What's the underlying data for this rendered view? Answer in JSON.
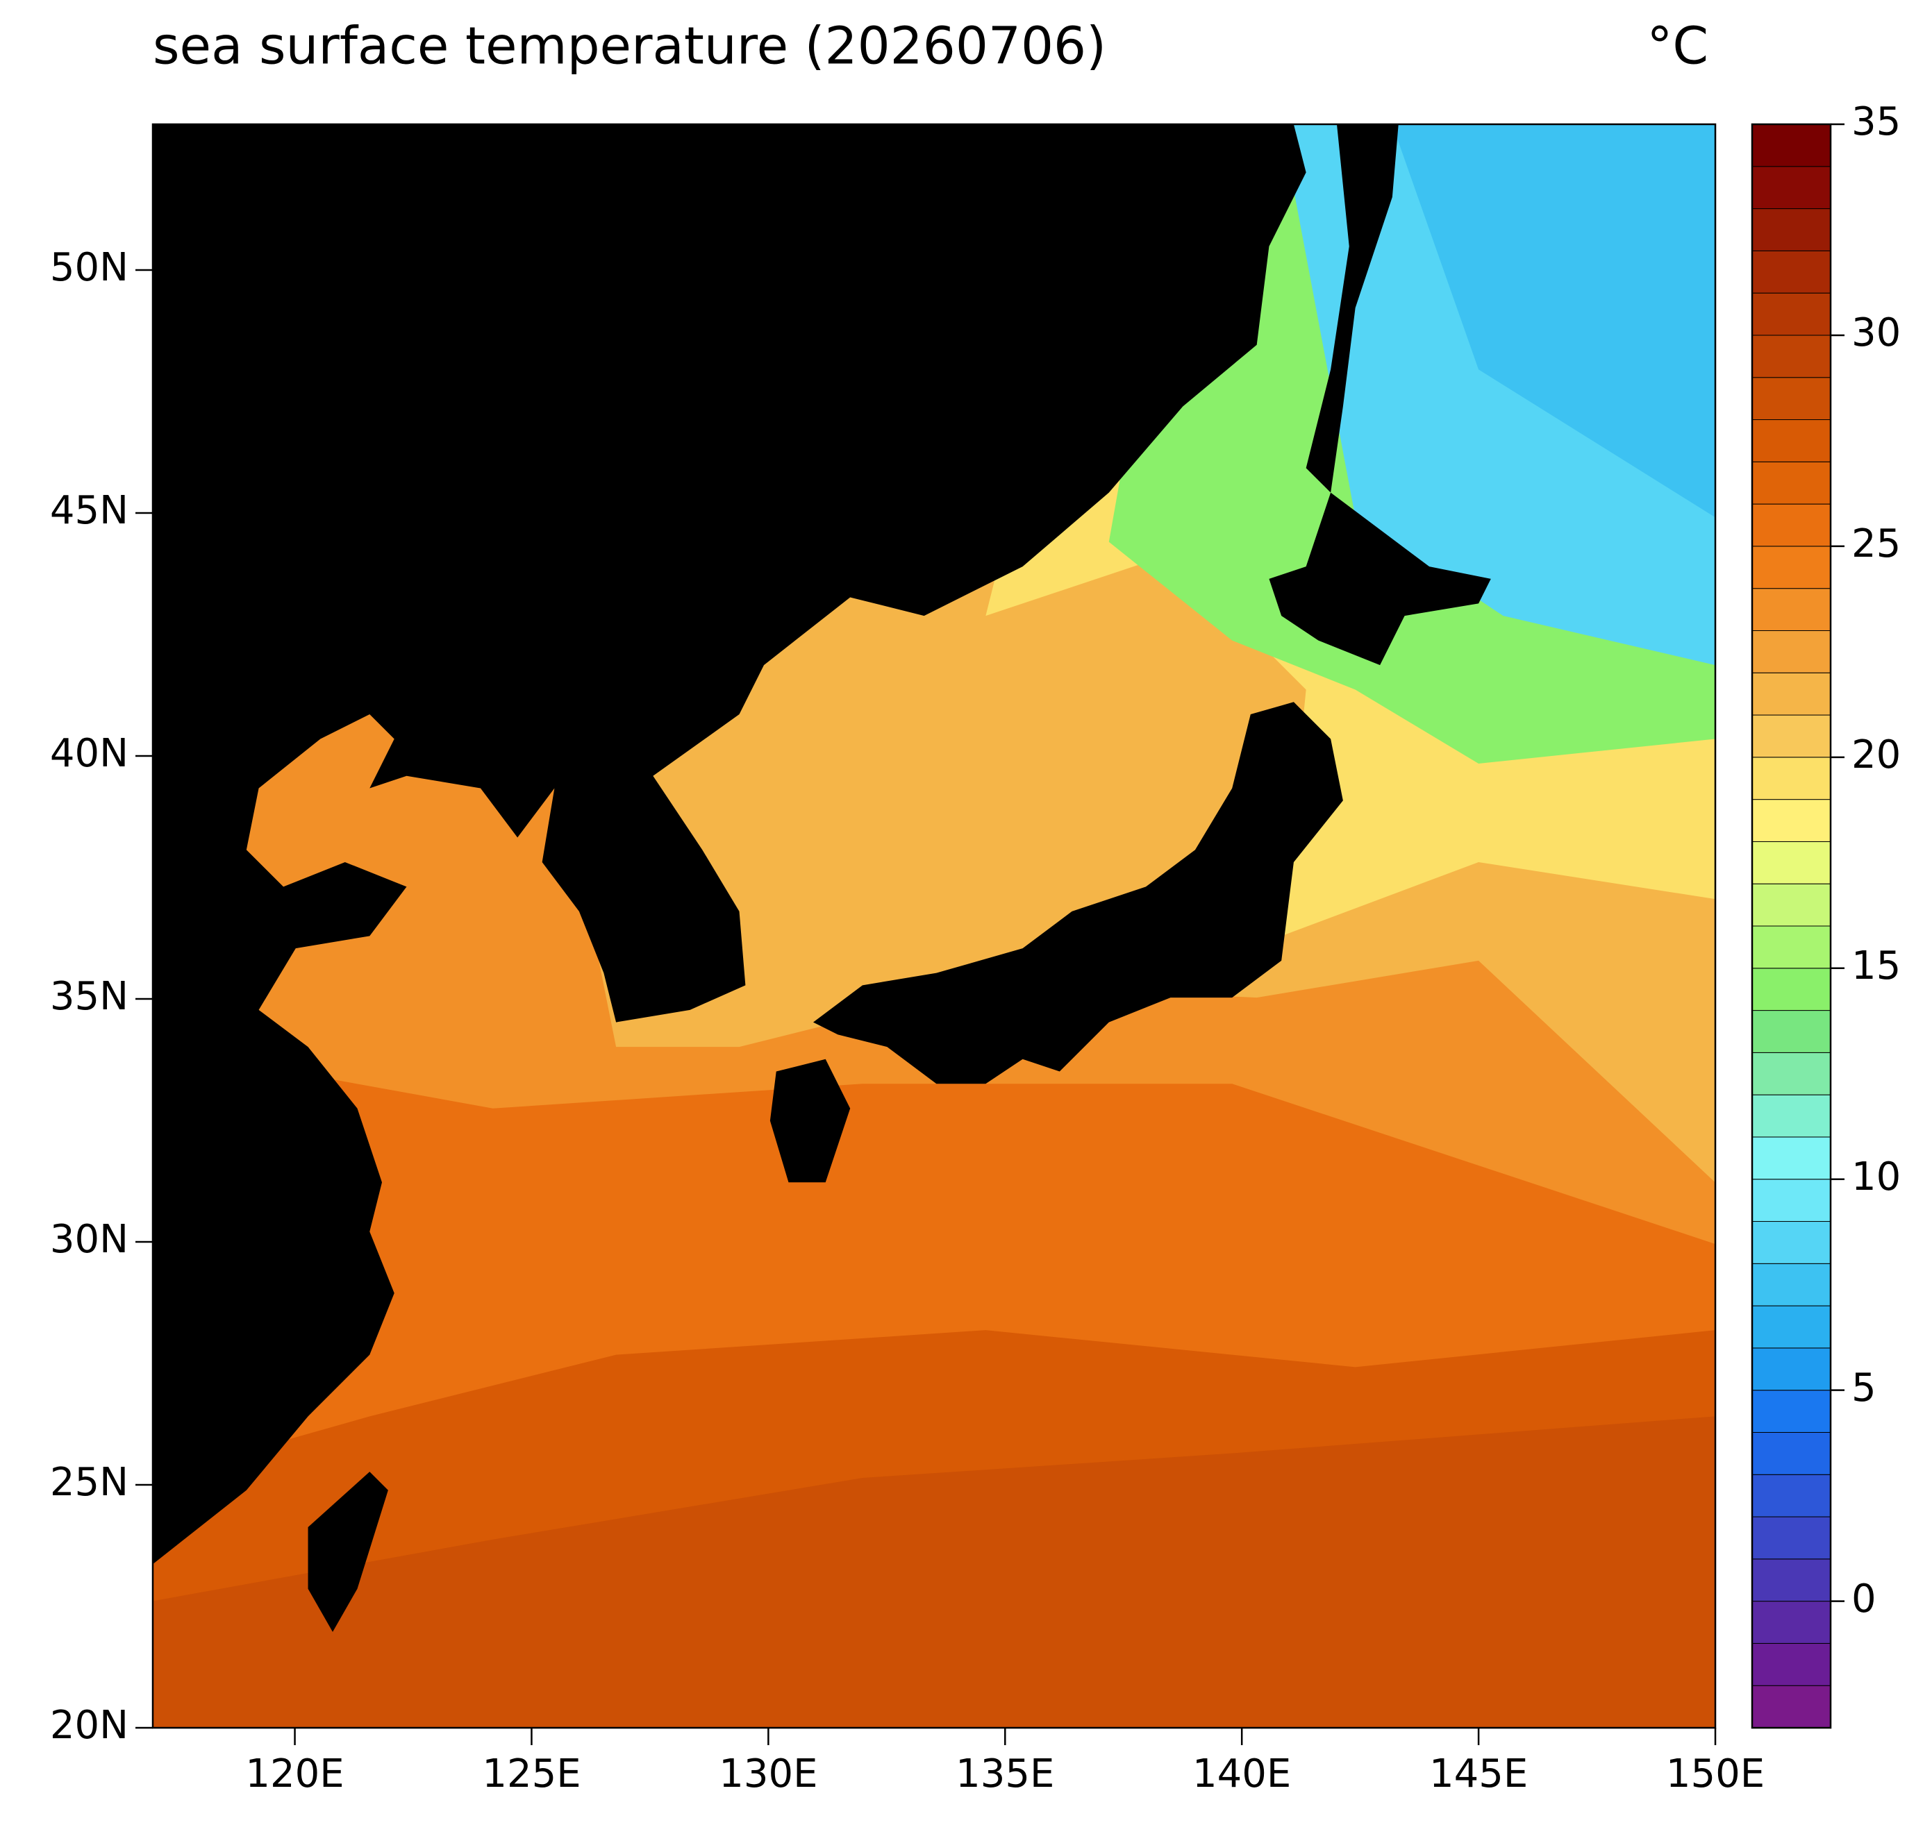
{
  "chart_data": {
    "type": "map",
    "title": "sea surface temperature (20260706)",
    "units": "°C",
    "xlim": [
      117,
      150
    ],
    "xticks": [
      {
        "value": 120,
        "label": "120E"
      },
      {
        "value": 125,
        "label": "125E"
      },
      {
        "value": 130,
        "label": "130E"
      },
      {
        "value": 135,
        "label": "135E"
      },
      {
        "value": 140,
        "label": "140E"
      },
      {
        "value": 145,
        "label": "145E"
      },
      {
        "value": 150,
        "label": "150E"
      }
    ],
    "ylim": [
      20,
      53
    ],
    "yticks": [
      {
        "value": 20,
        "label": "20N"
      },
      {
        "value": 25,
        "label": "25N"
      },
      {
        "value": 30,
        "label": "30N"
      },
      {
        "value": 35,
        "label": "35N"
      },
      {
        "value": 40,
        "label": "40N"
      },
      {
        "value": 45,
        "label": "45N"
      },
      {
        "value": 50,
        "label": "50N"
      }
    ],
    "colorbar": {
      "lim": [
        -3,
        35
      ],
      "ticks": [
        0,
        5,
        10,
        15,
        20,
        25,
        30,
        35
      ],
      "colors": [
        "#7a1a8a",
        "#6a1d96",
        "#5a2aa5",
        "#4a38b5",
        "#3b48c8",
        "#2d57d8",
        "#1f67e8",
        "#1a78f0",
        "#1f9cf0",
        "#2ab0f0",
        "#3dc2f2",
        "#55d5f5",
        "#6ee8f8",
        "#80f5f5",
        "#80f0d0",
        "#80eaa8",
        "#78e680",
        "#8af06a",
        "#a8f570",
        "#c8f878",
        "#e8fa7a",
        "#fff078",
        "#fce068",
        "#f8c85a",
        "#f5b548",
        "#f3a238",
        "#f29028",
        "#f07e18",
        "#ea7010",
        "#e06408",
        "#d85a05",
        "#cc5005",
        "#c04405",
        "#b53804",
        "#a82a04",
        "#981c04",
        "#880a04",
        "#780000"
      ]
    }
  }
}
